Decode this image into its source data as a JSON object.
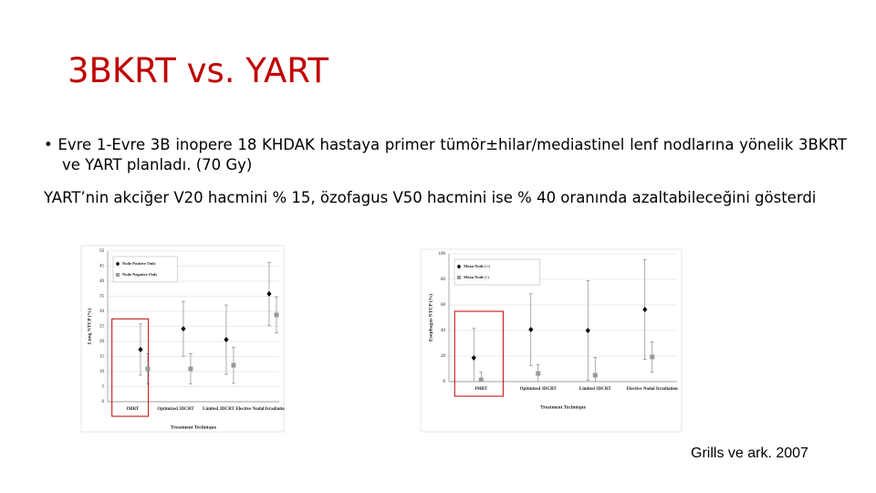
{
  "title": "3BKRT vs. YART",
  "bullet": "Evre 1-Evre 3B inopere  18 KHDAK hastaya primer tümör±hilar/mediastinel lenf nodlarına yönelik 3BKRT ve YART planladı. (70 Gy)",
  "note": "YART’nin akciğer V20 hacmini % 15, özofagus V50 hacmini ise % 40 oranında azaltabileceğini gösterdi",
  "citation": "Grills ve ark. 2007",
  "chart_data": [
    {
      "type": "errorbar",
      "ylabel": "Lung NTCP (%)",
      "xlabel": "Treatment Technique",
      "categories": [
        "IMRT",
        "Optimized 3DCRT",
        "Limited 3DCRT",
        "Elective Nodal Irradiation"
      ],
      "series": [
        {
          "name": "Node Positive Only",
          "color": "#000000",
          "marker": "diamond",
          "values": [
            17.3,
            24.2,
            20.6,
            35.8
          ],
          "errors": [
            8.5,
            9.1,
            11.5,
            10.5
          ]
        },
        {
          "name": "Node Negative Only",
          "color": "#999999",
          "marker": "square",
          "values": [
            10.9,
            10.9,
            12.1,
            28.8
          ],
          "errors": [
            5,
            5,
            6,
            6
          ]
        }
      ],
      "ylim": [
        0,
        50
      ],
      "yticks": [
        0,
        5,
        10,
        15,
        20,
        25,
        30,
        35,
        40,
        45,
        50
      ],
      "grid": true,
      "legend": "upper left"
    },
    {
      "type": "errorbar",
      "ylabel": "Esophagus NTCP (%)",
      "xlabel": "Treatment Technique",
      "categories": [
        "IMRT",
        "Optimized 3DCRT",
        "Limited 3DCRT",
        "Elective Nodal Irradiation"
      ],
      "series": [
        {
          "name": "Mean Node (+)",
          "color": "#000000",
          "marker": "diamond",
          "values": [
            18.6,
            40.7,
            40,
            56.4
          ],
          "errors": [
            23,
            28,
            39,
            39
          ]
        },
        {
          "name": "Mean Node (-)",
          "color": "#999999",
          "marker": "square",
          "values": [
            1.4,
            6.4,
            5,
            19.3
          ],
          "errors": [
            6,
            7,
            14,
            12
          ]
        }
      ],
      "ylim": [
        0,
        100
      ],
      "yticks": [
        0,
        20,
        40,
        60,
        80,
        100
      ],
      "grid": true,
      "legend": "upper left"
    }
  ]
}
